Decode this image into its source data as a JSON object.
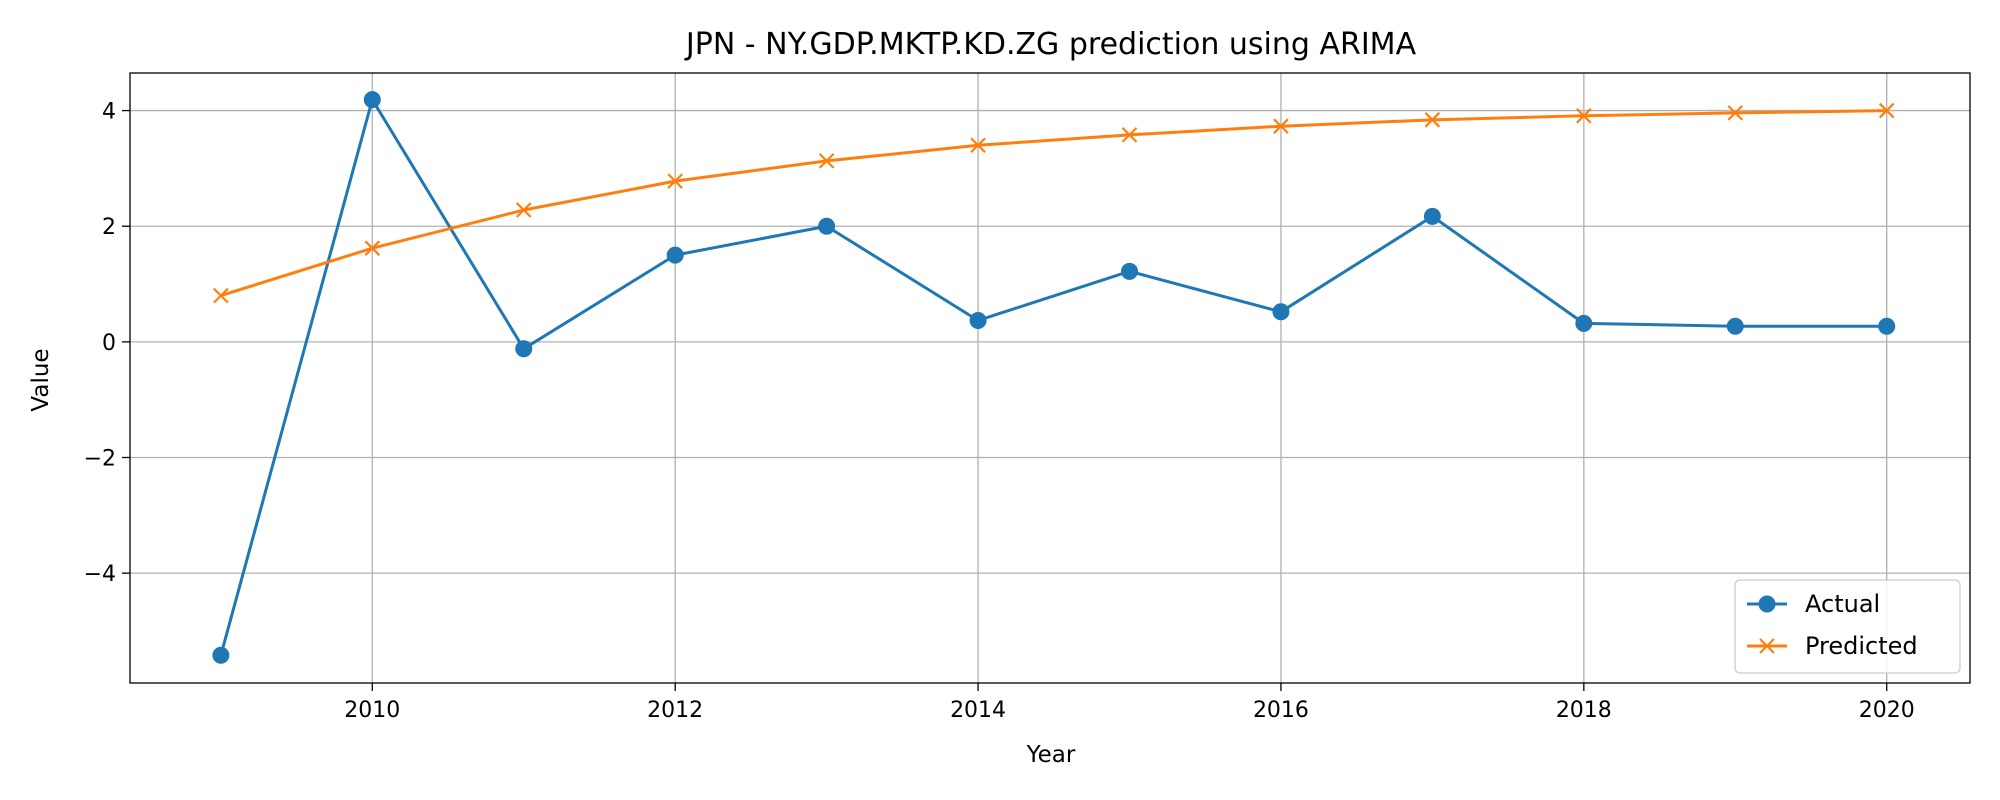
{
  "chart_data": {
    "type": "line",
    "title": "JPN - NY.GDP.MKTP.KD.ZG prediction using ARIMA",
    "xlabel": "Year",
    "ylabel": "Value",
    "x": [
      2009,
      2010,
      2011,
      2012,
      2013,
      2014,
      2015,
      2016,
      2017,
      2018,
      2019,
      2020
    ],
    "xlim": [
      2008.4,
      2020.55
    ],
    "ylim": [
      -5.9,
      4.65
    ],
    "xticks": [
      2010,
      2012,
      2014,
      2016,
      2018,
      2020
    ],
    "yticks": [
      -4,
      -2,
      0,
      2,
      4
    ],
    "ytick_labels": [
      "−4",
      "−2",
      "0",
      "2",
      "4"
    ],
    "grid": true,
    "legend_position": "lower right",
    "series": [
      {
        "name": "Actual",
        "color": "#1f77b4",
        "marker": "circle",
        "values": [
          -5.42,
          4.19,
          -0.12,
          1.5,
          2.0,
          0.37,
          1.22,
          0.52,
          2.17,
          0.32,
          0.27,
          0.27
        ]
      },
      {
        "name": "Predicted",
        "color": "#ff7f0e",
        "marker": "x",
        "values": [
          0.8,
          1.62,
          2.28,
          2.78,
          3.13,
          3.4,
          3.58,
          3.73,
          3.84,
          3.91,
          3.96,
          4.0
        ]
      }
    ]
  }
}
